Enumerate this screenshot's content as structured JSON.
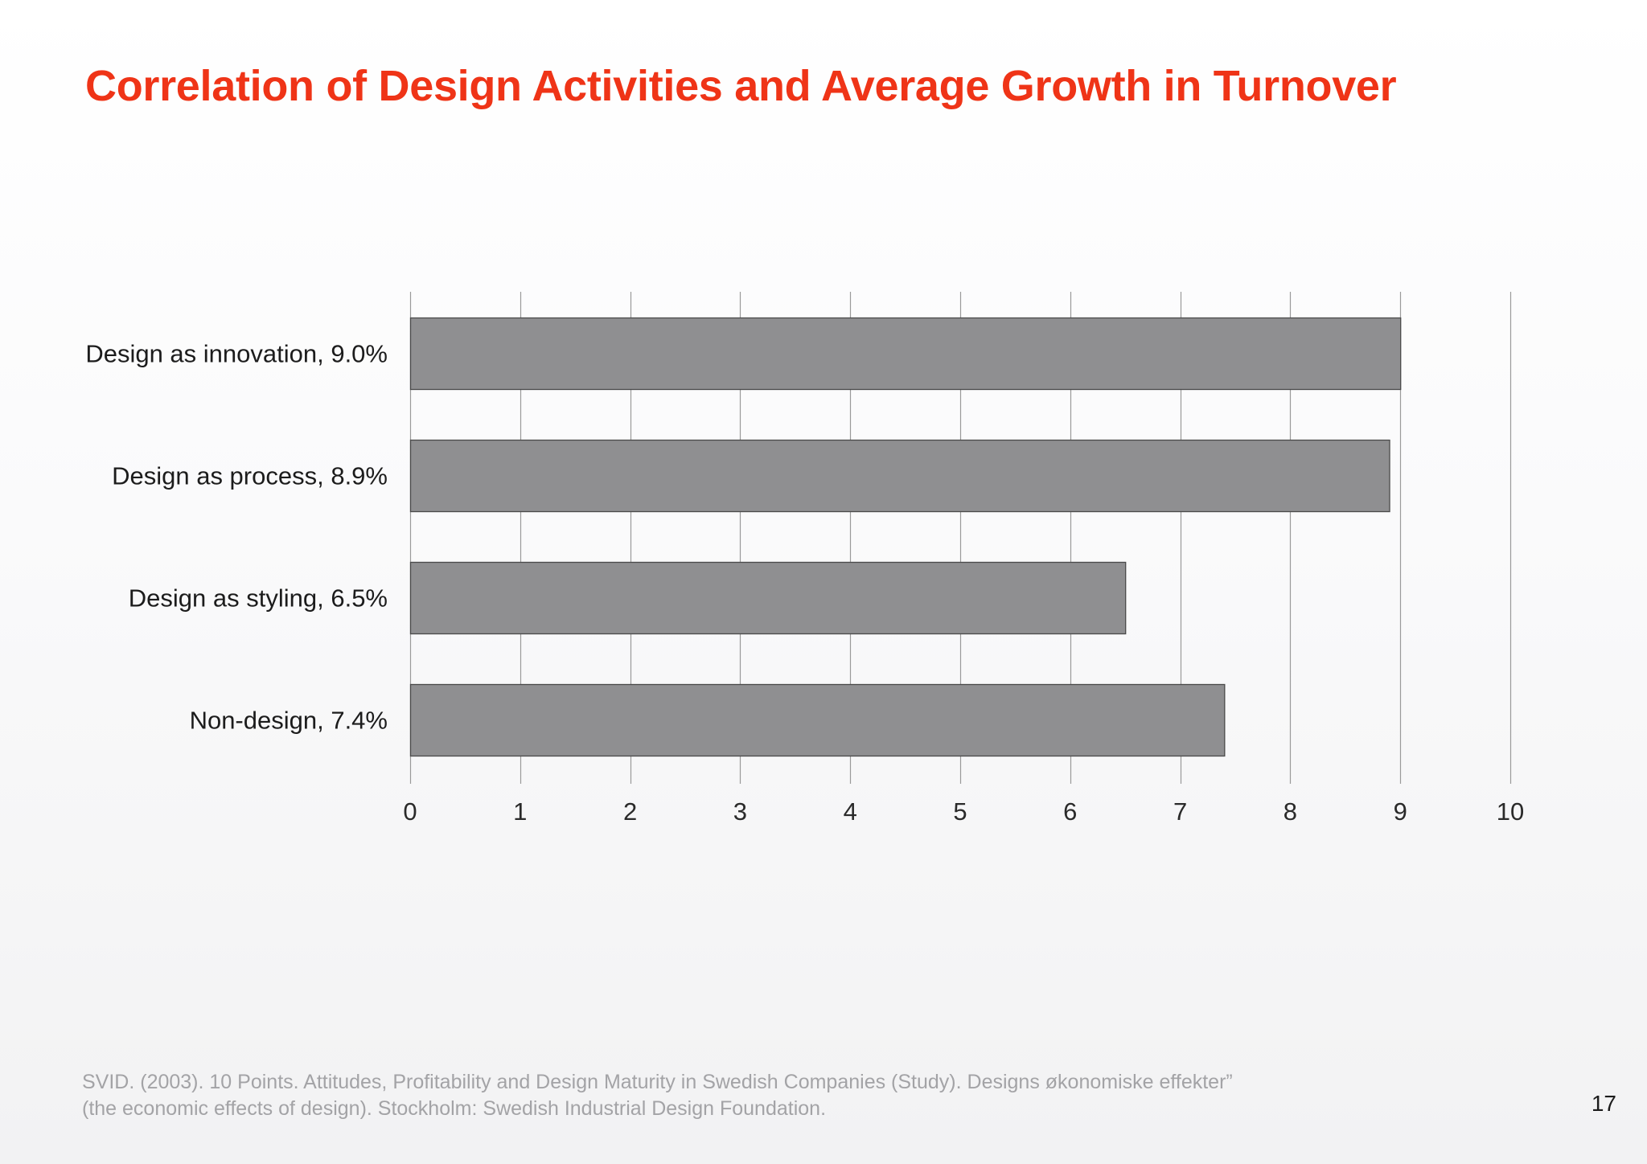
{
  "slide": {
    "title": "Correlation of Design Activities and Average Growth in Turnover",
    "source_line1": "SVID. (2003). 10 Points. Attitudes, Profitability and Design Maturity in Swedish Companies (Study). Designs økonomiske effekter”",
    "source_line2": "(the economic effects of design). Stockholm: Swedish Industrial Design Foundation.",
    "page_number": "17"
  },
  "chart_data": {
    "type": "bar",
    "orientation": "horizontal",
    "categories": [
      "Design as innovation, 9.0%",
      "Design as process, 8.9%",
      "Design as styling, 6.5%",
      "Non-design, 7.4%"
    ],
    "values": [
      9.0,
      8.9,
      6.5,
      7.4
    ],
    "title": "Correlation of Design Activities and Average Growth in Turnover",
    "xlabel": "",
    "ylabel": "",
    "xlim": [
      0,
      10
    ],
    "x_ticks": [
      0,
      1,
      2,
      3,
      4,
      5,
      6,
      7,
      8,
      9,
      10
    ],
    "grid": true,
    "legend": "none",
    "bar_color": "#8f8f91",
    "bar_edge_color": "#4a4a4a",
    "grid_color": "#9a9a9a"
  }
}
